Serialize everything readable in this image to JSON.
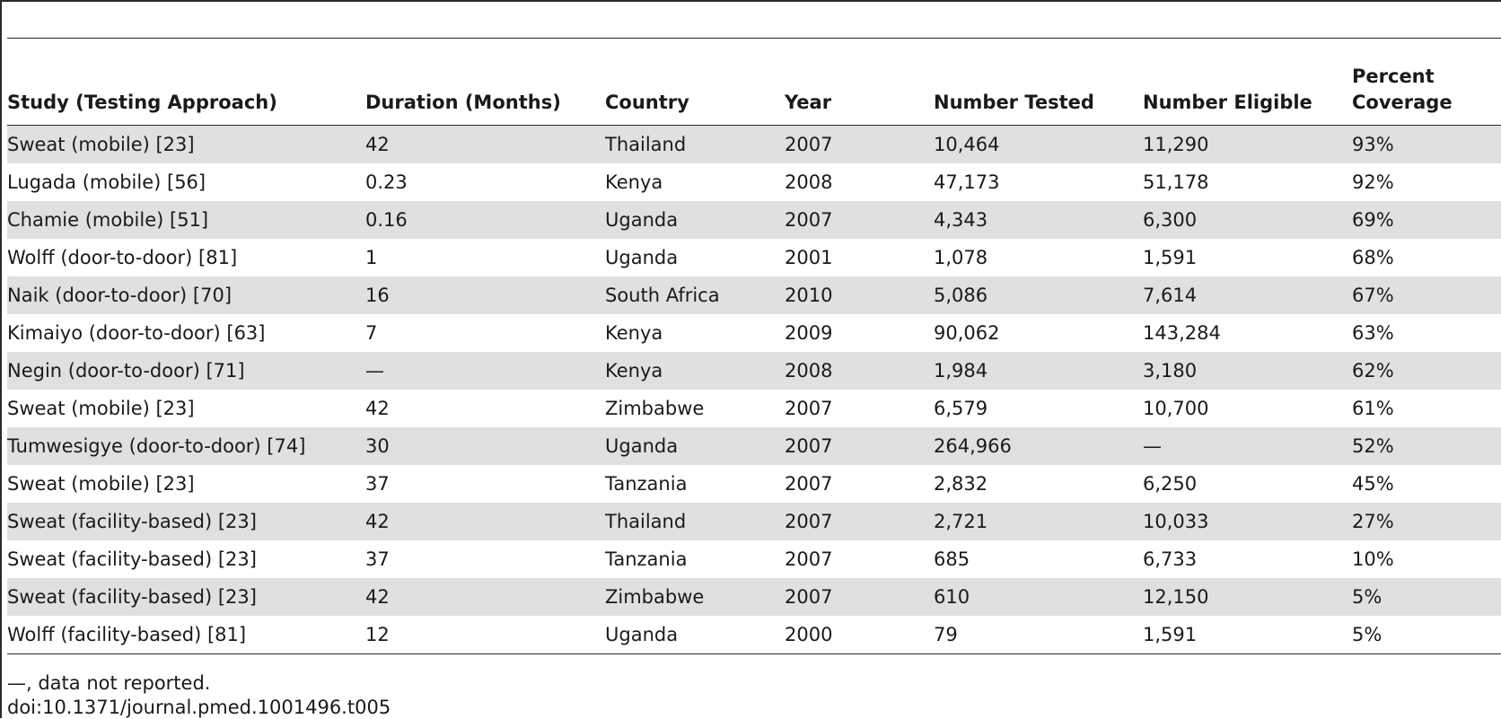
{
  "table": {
    "headers": [
      "Study (Testing Approach)",
      "Duration (Months)",
      "Country",
      "Year",
      "Number Tested",
      "Number Eligible",
      "Percent Coverage"
    ],
    "rows": [
      [
        "Sweat (mobile) [23]",
        "42",
        "Thailand",
        "2007",
        "10,464",
        "11,290",
        "93%"
      ],
      [
        "Lugada (mobile) [56]",
        "0.23",
        "Kenya",
        "2008",
        "47,173",
        "51,178",
        "92%"
      ],
      [
        "Chamie (mobile) [51]",
        "0.16",
        "Uganda",
        "2007",
        "4,343",
        "6,300",
        "69%"
      ],
      [
        "Wolff (door-to-door) [81]",
        "1",
        "Uganda",
        "2001",
        "1,078",
        "1,591",
        "68%"
      ],
      [
        "Naik (door-to-door) [70]",
        "16",
        "South Africa",
        "2010",
        "5,086",
        "7,614",
        "67%"
      ],
      [
        "Kimaiyo (door-to-door) [63]",
        "7",
        "Kenya",
        "2009",
        "90,062",
        "143,284",
        "63%"
      ],
      [
        "Negin (door-to-door) [71]",
        "—",
        "Kenya",
        "2008",
        "1,984",
        "3,180",
        "62%"
      ],
      [
        "Sweat (mobile) [23]",
        "42",
        "Zimbabwe",
        "2007",
        "6,579",
        "10,700",
        "61%"
      ],
      [
        "Tumwesigye (door-to-door) [74]",
        "30",
        "Uganda",
        "2007",
        "264,966",
        "—",
        "52%"
      ],
      [
        "Sweat (mobile) [23]",
        "37",
        "Tanzania",
        "2007",
        "2,832",
        "6,250",
        "45%"
      ],
      [
        "Sweat (facility-based) [23]",
        "42",
        "Thailand",
        "2007",
        "2,721",
        "10,033",
        "27%"
      ],
      [
        "Sweat (facility-based) [23]",
        "37",
        "Tanzania",
        "2007",
        "685",
        "6,733",
        "10%"
      ],
      [
        "Sweat (facility-based) [23]",
        "42",
        "Zimbabwe",
        "2007",
        "610",
        "12,150",
        "5%"
      ],
      [
        "Wolff (facility-based) [81]",
        "12",
        "Uganda",
        "2000",
        "79",
        "1,591",
        "5%"
      ]
    ]
  },
  "footnotes": {
    "note": "—, data not reported.",
    "doi": "doi:10.1371/journal.pmed.1001496.t005"
  },
  "colors": {
    "shaded_row": "#dfe0e2",
    "rule": "#2b2b2b",
    "text": "#1a1a1a"
  }
}
